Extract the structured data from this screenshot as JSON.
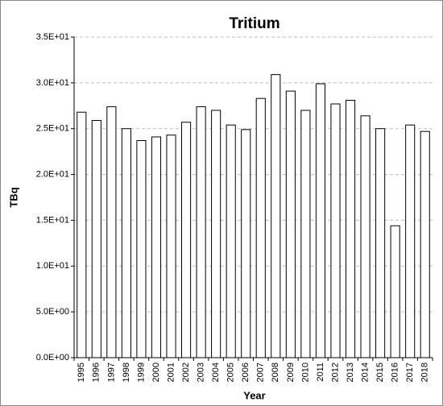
{
  "chart_data": {
    "type": "bar",
    "title": "Tritium",
    "x_label": "Year",
    "y_label": "TBq",
    "categories": [
      "1995",
      "1996",
      "1997",
      "1998",
      "1999",
      "2000",
      "2001",
      "2002",
      "2003",
      "2004",
      "2005",
      "2006",
      "2007",
      "2008",
      "2009",
      "2010",
      "2011",
      "2012",
      "2013",
      "2014",
      "2015",
      "2016",
      "2017",
      "2018"
    ],
    "values": [
      26.8,
      25.9,
      27.4,
      25.0,
      23.7,
      24.1,
      24.3,
      25.7,
      27.4,
      27.0,
      25.4,
      24.9,
      28.3,
      30.9,
      29.1,
      27.0,
      29.9,
      27.7,
      28.1,
      26.4,
      25.0,
      14.4,
      25.4,
      24.7
    ],
    "color": "#ffffff",
    "ylim": [
      0,
      35
    ],
    "yticks": [
      {
        "value": 0,
        "label": "0.0E+00"
      },
      {
        "value": 5,
        "label": "5.0E+00"
      },
      {
        "value": 10,
        "label": "1.0E+01"
      },
      {
        "value": 15,
        "label": "1.5E+01"
      },
      {
        "value": 20,
        "label": "2.0E+01"
      },
      {
        "value": 25,
        "label": "2.5E+01"
      },
      {
        "value": 30,
        "label": "3.0E+01"
      },
      {
        "value": 35,
        "label": "3.5E+01"
      }
    ],
    "grid": true
  }
}
